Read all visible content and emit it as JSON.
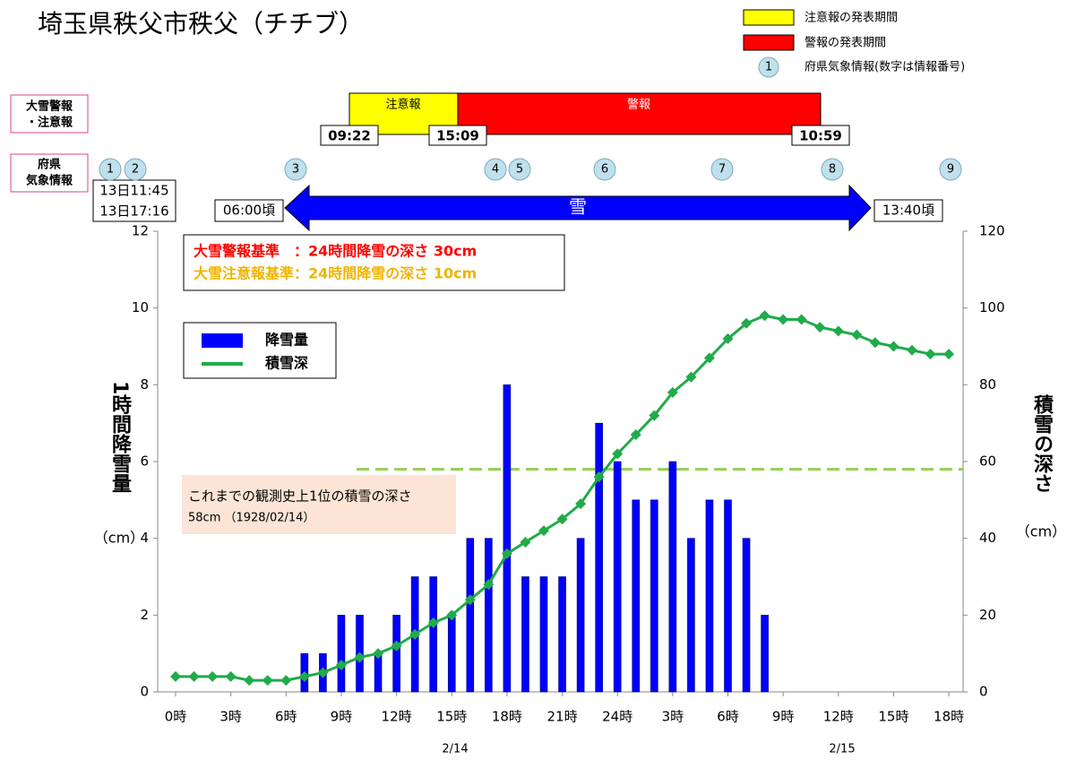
{
  "chart_data": {
    "type": "combo",
    "title": "埼玉県秩父市秩父（チチブ）",
    "legend_key": [
      {
        "label": "注意報の発表期間",
        "color": "#ffff00"
      },
      {
        "label": "警報の発表期間",
        "color": "#ff0000"
      },
      {
        "symbol": "1",
        "label": "府県気象情報(数字は情報番号)"
      }
    ],
    "warnings": {
      "row_label": [
        "大雪警報",
        "・注意報"
      ],
      "advisory": {
        "label": "注意報",
        "start": "09:22",
        "color": "#ffff00"
      },
      "warning": {
        "label": "警報",
        "start": "15:09",
        "end": "10:59",
        "color": "#ff0000"
      }
    },
    "info": {
      "row_label": [
        "府県",
        "気象情報"
      ],
      "items": [
        "1",
        "2",
        "3",
        "4",
        "5",
        "6",
        "7",
        "8",
        "9"
      ],
      "times": [
        "13日11:45",
        "13日17:16"
      ]
    },
    "snow_period": {
      "start": "06:00頃",
      "label": "雪",
      "end": "13:40頃",
      "color": "#0000ff"
    },
    "criteria": [
      {
        "text": "大雪警報基準　：24時間降雪の深さ  30cm",
        "color": "#ff0000"
      },
      {
        "text": "大雪注意報基準：24時間降雪の深さ  10cm",
        "color": "#f0b400"
      }
    ],
    "categories": [
      "0時",
      null,
      null,
      "3時",
      null,
      null,
      "6時",
      null,
      null,
      "9時",
      null,
      null,
      "12時",
      null,
      null,
      "15時",
      null,
      null,
      "18時",
      null,
      null,
      "21時",
      null,
      null,
      "24時",
      null,
      null,
      "3時",
      null,
      null,
      "6時",
      null,
      null,
      "9時",
      null,
      null,
      "12時",
      null,
      null,
      "15時",
      null,
      null,
      "18時"
    ],
    "dates": [
      "2/14",
      "2/15"
    ],
    "series": [
      {
        "name": "降雪量",
        "type": "bar",
        "color": "#0000ff",
        "values": [
          0,
          0,
          0,
          0,
          0,
          0,
          0,
          1,
          1,
          2,
          2,
          1,
          2,
          3,
          3,
          2,
          4,
          4,
          8,
          3,
          3,
          3,
          4,
          7,
          6,
          5,
          5,
          6,
          4,
          5,
          5,
          4,
          2,
          null,
          null,
          null,
          null,
          null,
          null,
          null,
          null,
          null,
          null
        ]
      },
      {
        "name": "積雪深",
        "type": "line",
        "axis": "y2",
        "color": "#20ab4a",
        "values": [
          4,
          4,
          4,
          4,
          3,
          3,
          3,
          4,
          5,
          7,
          9,
          10,
          12,
          15,
          18,
          20,
          24,
          28,
          36,
          39,
          42,
          45,
          49,
          56,
          62,
          67,
          72,
          78,
          82,
          87,
          92,
          96,
          98,
          97,
          97,
          95,
          94,
          93,
          91,
          90,
          89,
          88,
          88
        ]
      }
    ],
    "ylim": [
      0,
      12
    ],
    "yticks": [
      0,
      2,
      4,
      6,
      8,
      10,
      12
    ],
    "y2lim": [
      0,
      120
    ],
    "y2ticks": [
      0,
      20,
      40,
      60,
      80,
      100,
      120
    ],
    "ylabel": "1時間降雪量",
    "ylabel_unit": "（cm）",
    "y2label": "積雪の深さ",
    "y2label_unit": "（cm）",
    "record": {
      "value": 58,
      "axis": "y2",
      "color": "#92d050",
      "label": [
        "これまでの観測史上1位の積雪の深さ",
        "58cm （1928/02/14）"
      ]
    }
  }
}
